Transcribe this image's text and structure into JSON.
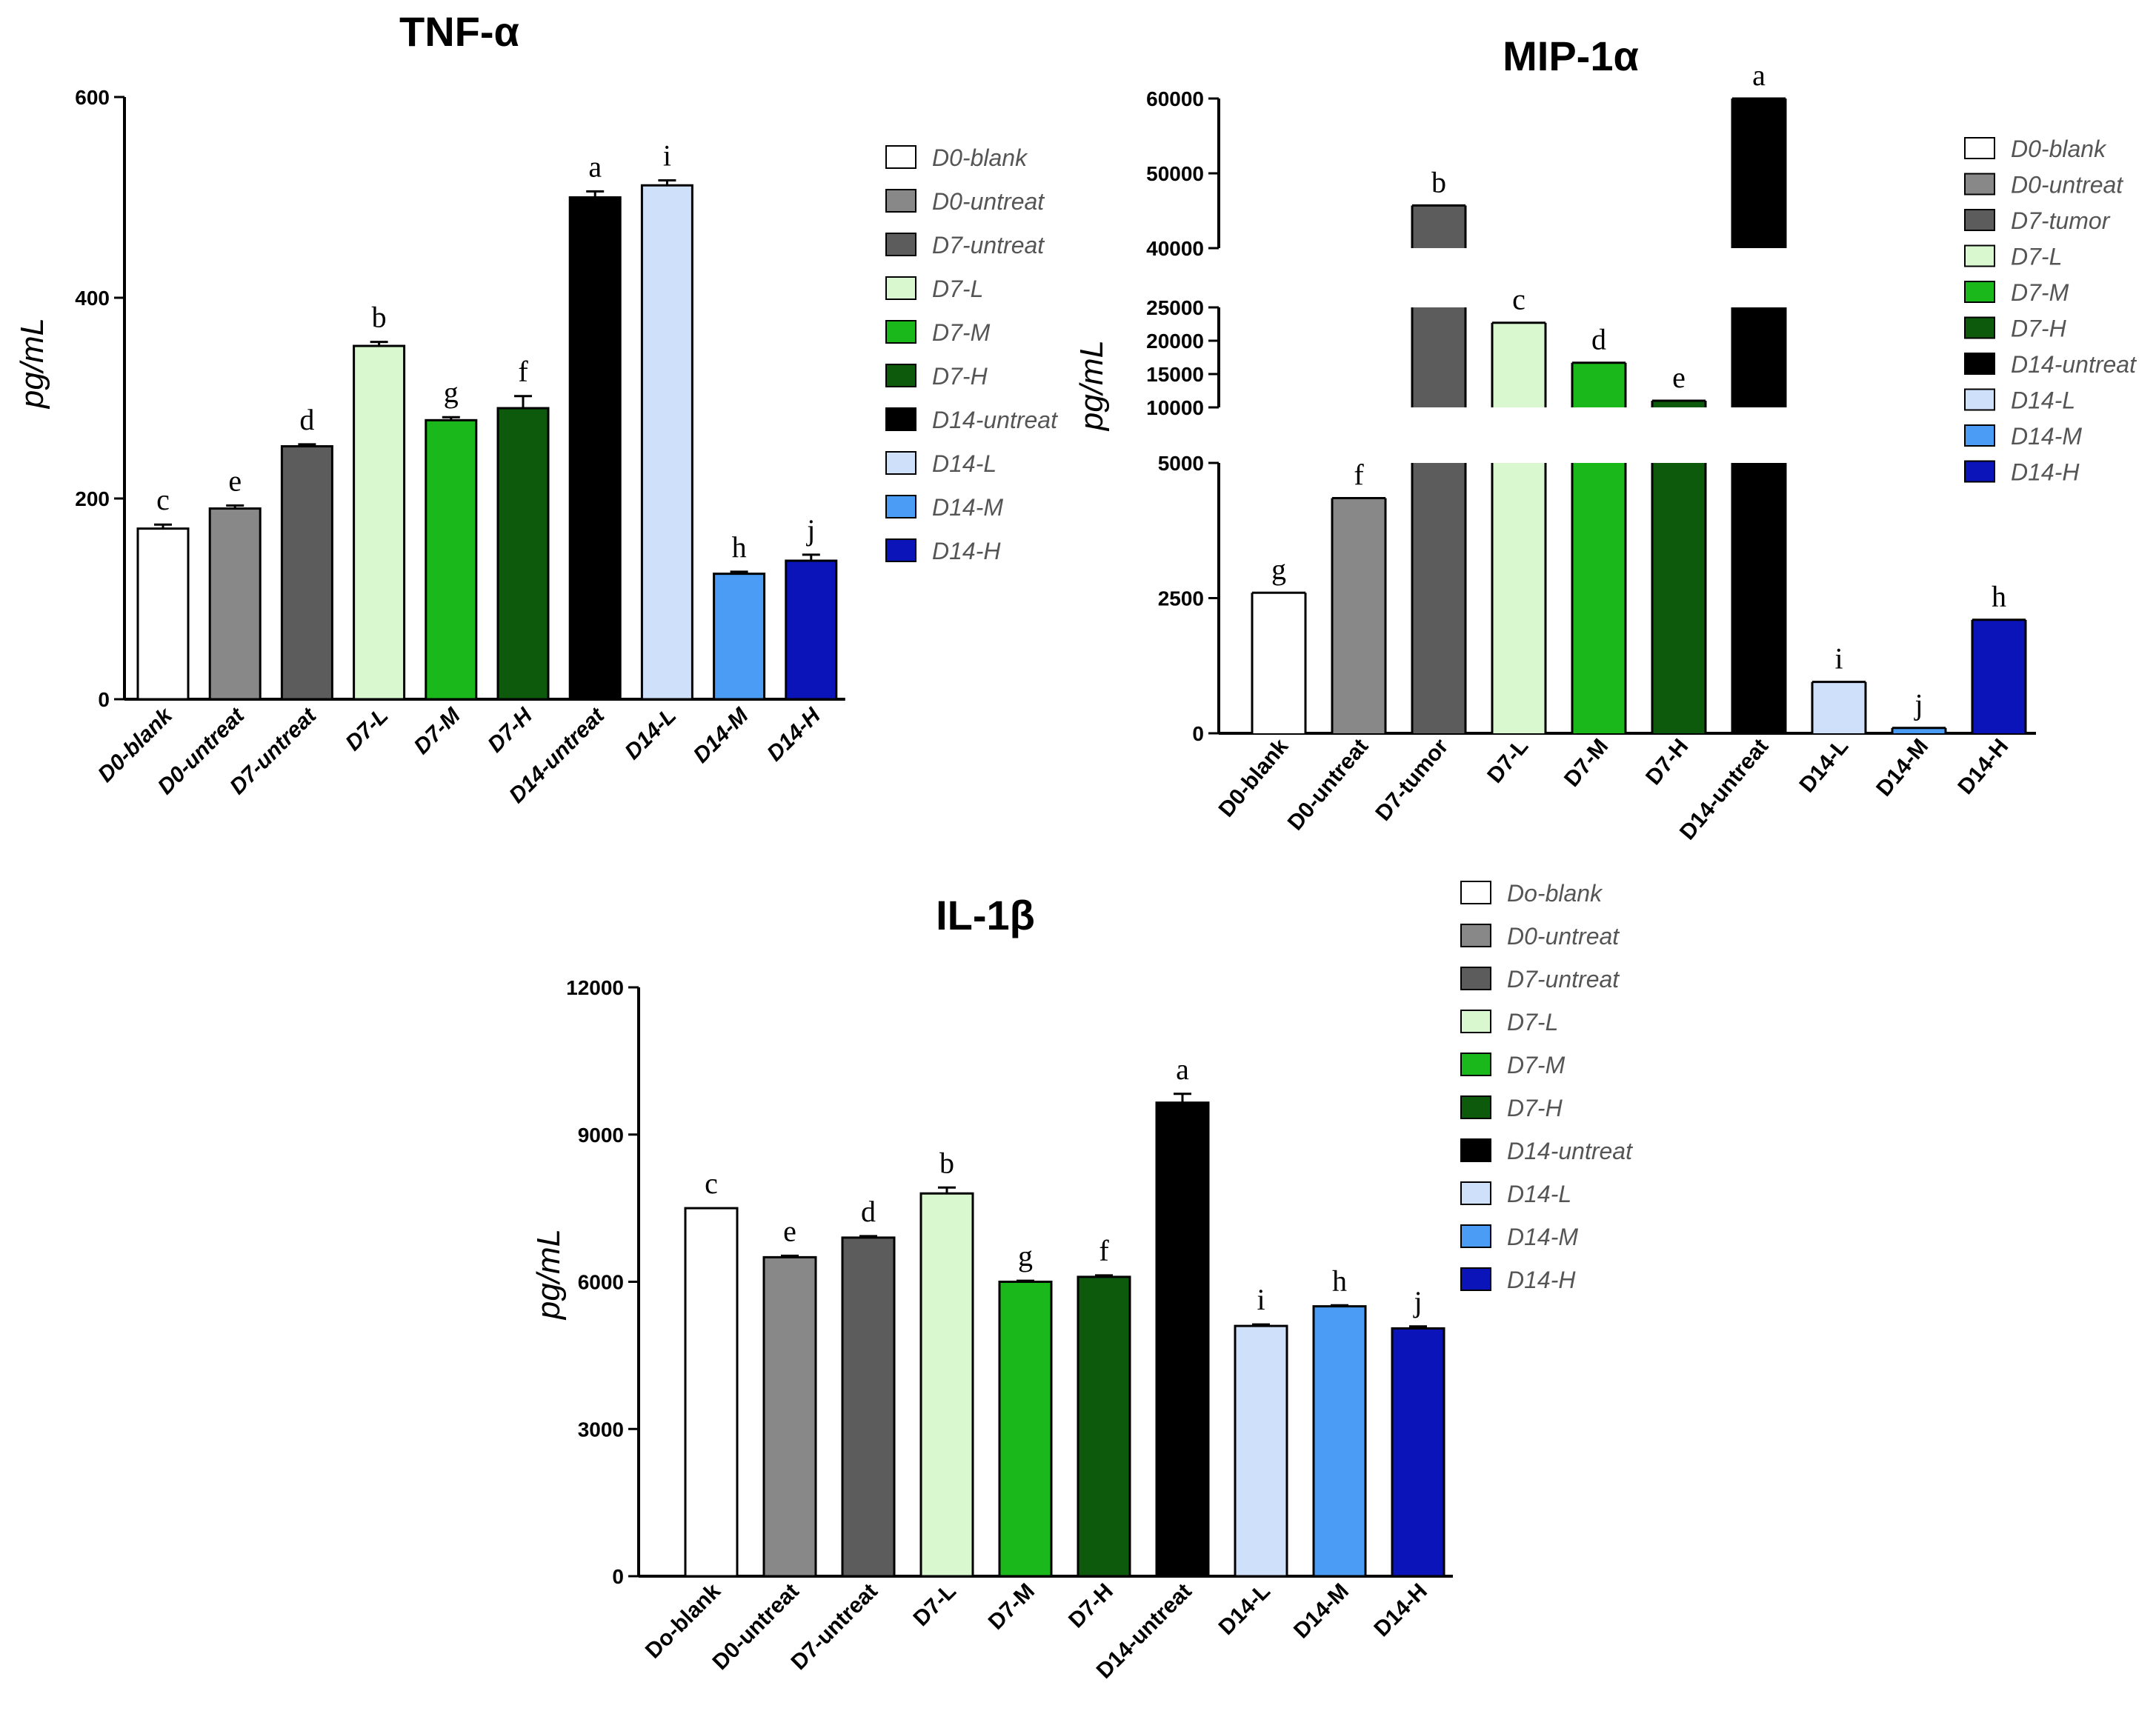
{
  "chart_data": [
    {
      "id": "tnf",
      "type": "bar",
      "title": "TNF-α",
      "ylabel": "pg/mL",
      "ylim": [
        0,
        600
      ],
      "yticks": [
        0,
        200,
        400,
        600
      ],
      "categories": [
        "D0-blank",
        "D0-untreat",
        "D7-untreat",
        "D7-L",
        "D7-M",
        "D7-H",
        "D14-untreat",
        "D14-L",
        "D14-M",
        "D14-H"
      ],
      "values": [
        170,
        190,
        252,
        352,
        278,
        290,
        500,
        512,
        125,
        138
      ],
      "errors": [
        4,
        3,
        2,
        4,
        3,
        12,
        6,
        5,
        2,
        6
      ],
      "letters": [
        "c",
        "e",
        "d",
        "b",
        "g",
        "f",
        "a",
        "i",
        "h",
        "j"
      ],
      "legend": [
        "D0-blank",
        "D0-untreat",
        "D7-untreat",
        "D7-L",
        "D7-M",
        "D7-H",
        "D14-untreat",
        "D14-L",
        "D14-M",
        "D14-H"
      ],
      "legend_position": "right",
      "colors": [
        "#ffffff",
        "#888888",
        "#5c5c5c",
        "#d9f8cf",
        "#1ab81a",
        "#0d5a0d",
        "#000000",
        "#cfe0fa",
        "#4a9cf4",
        "#0a14b8"
      ]
    },
    {
      "id": "mip",
      "type": "bar",
      "title": "MIP-1α",
      "ylabel": "pg/mL",
      "broken_axis": true,
      "segments": [
        [
          0,
          5000
        ],
        [
          10000,
          25000
        ],
        [
          40000,
          60000
        ]
      ],
      "yticks": [
        0,
        2500,
        5000,
        10000,
        15000,
        20000,
        25000,
        40000,
        50000,
        60000
      ],
      "categories": [
        "D0-blank",
        "D0-untreat",
        "D7-tumor",
        "D7-L",
        "D7-M",
        "D7-H",
        "D14-untreat",
        "D14-L",
        "D14-M",
        "D14-H"
      ],
      "values": [
        2600,
        4350,
        45700,
        22700,
        16700,
        11000,
        60000,
        950,
        100,
        2100
      ],
      "letters": [
        "g",
        "f",
        "b",
        "c",
        "d",
        "e",
        "a",
        "i",
        "j",
        "h"
      ],
      "legend": [
        "D0-blank",
        "D0-untreat",
        "D7-tumor",
        "D7-L",
        "D7-M",
        "D7-H",
        "D14-untreat",
        "D14-L",
        "D14-M",
        "D14-H"
      ],
      "legend_position": "right",
      "colors": [
        "#ffffff",
        "#888888",
        "#5c5c5c",
        "#d9f8cf",
        "#1ab81a",
        "#0d5a0d",
        "#000000",
        "#cfe0fa",
        "#4a9cf4",
        "#0a14b8"
      ]
    },
    {
      "id": "il",
      "type": "bar",
      "title": "IL-1β",
      "ylabel": "pg/mL",
      "ylim": [
        0,
        12000
      ],
      "yticks": [
        0,
        3000,
        6000,
        9000,
        12000
      ],
      "categories": [
        "Do-blank",
        "D0-untreat",
        "D7-untreat",
        "D7-L",
        "D7-M",
        "D7-H",
        "D14-untreat",
        "D14-L",
        "D14-M",
        "D14-H"
      ],
      "values": [
        7500,
        6500,
        6900,
        7800,
        6000,
        6100,
        9650,
        5100,
        5500,
        5050
      ],
      "errors": [
        0,
        30,
        30,
        120,
        20,
        30,
        180,
        30,
        20,
        40
      ],
      "letters": [
        "c",
        "e",
        "d",
        "b",
        "g",
        "f",
        "a",
        "i",
        "h",
        "j"
      ],
      "legend": [
        "Do-blank",
        "D0-untreat",
        "D7-untreat",
        "D7-L",
        "D7-M",
        "D7-H",
        "D14-untreat",
        "D14-L",
        "D14-M",
        "D14-H"
      ],
      "legend_position": "right",
      "colors": [
        "#ffffff",
        "#888888",
        "#5c5c5c",
        "#d9f8cf",
        "#1ab81a",
        "#0d5a0d",
        "#000000",
        "#cfe0fa",
        "#4a9cf4",
        "#0a14b8"
      ]
    }
  ]
}
